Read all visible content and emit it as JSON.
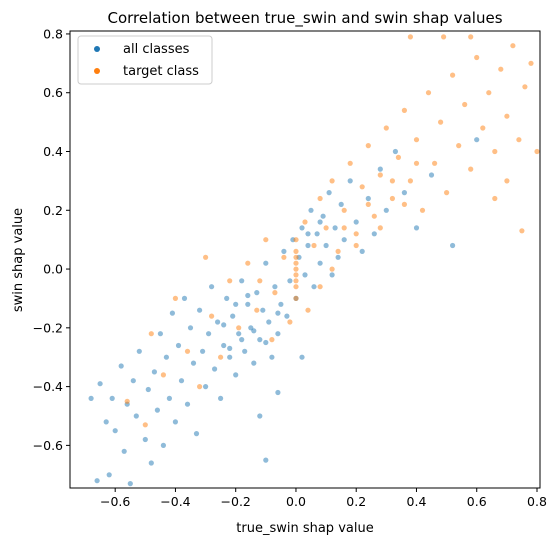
{
  "chart_data": {
    "type": "scatter",
    "title": "Correlation between true_swin and swin shap values",
    "xlabel": "true_swin shap value",
    "ylabel": "swin shap value",
    "xlim": [
      -0.75,
      0.81
    ],
    "ylim": [
      -0.745,
      0.81
    ],
    "x_ticks": [
      -0.6,
      -0.4,
      -0.2,
      0.0,
      0.2,
      0.4,
      0.6,
      0.8
    ],
    "x_tick_labels": [
      "−0.6",
      "−0.4",
      "−0.2",
      "0.0",
      "0.2",
      "0.4",
      "0.6",
      "0.8"
    ],
    "y_ticks": [
      -0.6,
      -0.4,
      -0.2,
      0.0,
      0.2,
      0.4,
      0.6,
      0.8
    ],
    "y_tick_labels": [
      "−0.6",
      "−0.4",
      "−0.2",
      "0.0",
      "0.2",
      "0.4",
      "0.6",
      "0.8"
    ],
    "grid": false,
    "legend_position": "upper-left",
    "series": [
      {
        "name": "all classes",
        "color": "#1f77b4",
        "points": [
          [
            -0.68,
            -0.44
          ],
          [
            -0.66,
            -0.72
          ],
          [
            -0.65,
            -0.39
          ],
          [
            -0.63,
            -0.52
          ],
          [
            -0.62,
            -0.7
          ],
          [
            -0.61,
            -0.44
          ],
          [
            -0.6,
            -0.55
          ],
          [
            -0.58,
            -0.33
          ],
          [
            -0.57,
            -0.62
          ],
          [
            -0.56,
            -0.46
          ],
          [
            -0.55,
            -0.73
          ],
          [
            -0.54,
            -0.38
          ],
          [
            -0.53,
            -0.5
          ],
          [
            -0.52,
            -0.28
          ],
          [
            -0.5,
            -0.58
          ],
          [
            -0.49,
            -0.41
          ],
          [
            -0.48,
            -0.66
          ],
          [
            -0.47,
            -0.35
          ],
          [
            -0.46,
            -0.48
          ],
          [
            -0.45,
            -0.22
          ],
          [
            -0.44,
            -0.6
          ],
          [
            -0.43,
            -0.3
          ],
          [
            -0.42,
            -0.44
          ],
          [
            -0.41,
            -0.15
          ],
          [
            -0.4,
            -0.52
          ],
          [
            -0.39,
            -0.26
          ],
          [
            -0.38,
            -0.38
          ],
          [
            -0.37,
            -0.1
          ],
          [
            -0.36,
            -0.46
          ],
          [
            -0.35,
            -0.2
          ],
          [
            -0.34,
            -0.32
          ],
          [
            -0.33,
            -0.56
          ],
          [
            -0.32,
            -0.14
          ],
          [
            -0.31,
            -0.28
          ],
          [
            -0.3,
            -0.4
          ],
          [
            -0.29,
            -0.22
          ],
          [
            -0.28,
            -0.06
          ],
          [
            -0.27,
            -0.34
          ],
          [
            -0.26,
            -0.18
          ],
          [
            -0.25,
            -0.44
          ],
          [
            -0.24,
            -0.26
          ],
          [
            -0.23,
            -0.1
          ],
          [
            -0.22,
            -0.3
          ],
          [
            -0.21,
            -0.16
          ],
          [
            -0.2,
            -0.36
          ],
          [
            -0.19,
            -0.22
          ],
          [
            -0.18,
            -0.04
          ],
          [
            -0.17,
            -0.28
          ],
          [
            -0.16,
            -0.12
          ],
          [
            -0.15,
            -0.2
          ],
          [
            -0.14,
            -0.32
          ],
          [
            -0.13,
            -0.08
          ],
          [
            -0.12,
            -0.24
          ],
          [
            -0.11,
            -0.14
          ],
          [
            -0.1,
            0.02
          ],
          [
            -0.09,
            -0.18
          ],
          [
            -0.08,
            -0.3
          ],
          [
            -0.07,
            -0.06
          ],
          [
            -0.06,
            -0.22
          ],
          [
            -0.05,
            -0.12
          ],
          [
            -0.04,
            0.06
          ],
          [
            -0.03,
            -0.16
          ],
          [
            -0.02,
            -0.04
          ],
          [
            -0.01,
            0.1
          ],
          [
            0.0,
            -0.1
          ],
          [
            0.01,
            0.04
          ],
          [
            0.02,
            0.14
          ],
          [
            0.03,
            -0.02
          ],
          [
            0.04,
            0.08
          ],
          [
            0.05,
            0.2
          ],
          [
            0.06,
            -0.06
          ],
          [
            0.07,
            0.12
          ],
          [
            0.08,
            0.02
          ],
          [
            0.09,
            0.18
          ],
          [
            0.1,
            0.08
          ],
          [
            0.11,
            0.26
          ],
          [
            0.12,
            -0.02
          ],
          [
            0.13,
            0.14
          ],
          [
            0.14,
            0.04
          ],
          [
            0.15,
            0.22
          ],
          [
            0.16,
            0.1
          ],
          [
            0.18,
            0.3
          ],
          [
            0.2,
            0.16
          ],
          [
            0.22,
            0.06
          ],
          [
            0.24,
            0.24
          ],
          [
            0.26,
            0.12
          ],
          [
            0.28,
            0.34
          ],
          [
            0.3,
            0.2
          ],
          [
            0.33,
            0.4
          ],
          [
            0.36,
            0.26
          ],
          [
            0.4,
            0.14
          ],
          [
            0.45,
            0.32
          ],
          [
            0.52,
            0.08
          ],
          [
            0.6,
            0.44
          ],
          [
            -0.22,
            -0.27
          ],
          [
            -0.18,
            -0.24
          ],
          [
            -0.14,
            -0.21
          ],
          [
            -0.1,
            -0.25
          ],
          [
            -0.06,
            -0.15
          ],
          [
            -0.24,
            -0.19
          ],
          [
            -0.2,
            -0.12
          ],
          [
            -0.16,
            -0.09
          ],
          [
            0.04,
            0.12
          ],
          [
            0.08,
            0.16
          ],
          [
            -0.12,
            -0.5
          ],
          [
            -0.06,
            -0.42
          ],
          [
            0.02,
            -0.3
          ],
          [
            -0.1,
            -0.65
          ]
        ]
      },
      {
        "name": "target class",
        "color": "#ff7f0e",
        "points": [
          [
            -0.56,
            -0.45
          ],
          [
            -0.5,
            -0.53
          ],
          [
            -0.48,
            -0.22
          ],
          [
            -0.44,
            -0.36
          ],
          [
            -0.4,
            -0.1
          ],
          [
            -0.36,
            -0.28
          ],
          [
            -0.32,
            -0.4
          ],
          [
            -0.3,
            0.04
          ],
          [
            -0.28,
            -0.16
          ],
          [
            -0.25,
            -0.3
          ],
          [
            -0.22,
            -0.04
          ],
          [
            -0.19,
            -0.2
          ],
          [
            -0.16,
            0.02
          ],
          [
            -0.13,
            -0.14
          ],
          [
            -0.1,
            0.1
          ],
          [
            -0.07,
            -0.08
          ],
          [
            -0.04,
            0.04
          ],
          [
            -0.02,
            -0.18
          ],
          [
            0.0,
            0.06
          ],
          [
            0.0,
            -0.02
          ],
          [
            0.0,
            0.1
          ],
          [
            0.0,
            -0.06
          ],
          [
            0.0,
            0.02
          ],
          [
            0.0,
            -0.1
          ],
          [
            0.0,
            0.0
          ],
          [
            0.0,
            0.04
          ],
          [
            0.0,
            -0.04
          ],
          [
            0.03,
            0.16
          ],
          [
            0.06,
            0.08
          ],
          [
            0.08,
            0.24
          ],
          [
            0.1,
            0.14
          ],
          [
            0.12,
            0.3
          ],
          [
            0.14,
            0.06
          ],
          [
            0.16,
            0.2
          ],
          [
            0.18,
            0.36
          ],
          [
            0.2,
            0.12
          ],
          [
            0.22,
            0.28
          ],
          [
            0.24,
            0.42
          ],
          [
            0.26,
            0.18
          ],
          [
            0.28,
            0.32
          ],
          [
            0.3,
            0.48
          ],
          [
            0.32,
            0.24
          ],
          [
            0.34,
            0.38
          ],
          [
            0.36,
            0.54
          ],
          [
            0.38,
            0.3
          ],
          [
            0.4,
            0.44
          ],
          [
            0.42,
            0.2
          ],
          [
            0.44,
            0.6
          ],
          [
            0.46,
            0.36
          ],
          [
            0.48,
            0.5
          ],
          [
            0.5,
            0.26
          ],
          [
            0.52,
            0.66
          ],
          [
            0.54,
            0.42
          ],
          [
            0.56,
            0.56
          ],
          [
            0.58,
            0.34
          ],
          [
            0.6,
            0.72
          ],
          [
            0.62,
            0.48
          ],
          [
            0.64,
            0.6
          ],
          [
            0.66,
            0.4
          ],
          [
            0.68,
            0.68
          ],
          [
            0.7,
            0.52
          ],
          [
            0.72,
            0.76
          ],
          [
            0.74,
            0.44
          ],
          [
            0.76,
            0.62
          ],
          [
            0.78,
            0.7
          ],
          [
            0.8,
            0.4
          ],
          [
            0.75,
            0.13
          ],
          [
            0.7,
            0.3
          ],
          [
            0.66,
            0.24
          ],
          [
            0.38,
            0.79
          ],
          [
            0.58,
            0.79
          ],
          [
            0.49,
            0.79
          ],
          [
            0.12,
            0.0
          ],
          [
            0.16,
            0.14
          ],
          [
            0.2,
            0.08
          ],
          [
            0.24,
            0.22
          ],
          [
            0.28,
            0.14
          ],
          [
            0.32,
            0.3
          ],
          [
            0.36,
            0.22
          ],
          [
            0.4,
            0.36
          ],
          [
            -0.08,
            -0.24
          ],
          [
            -0.12,
            -0.04
          ],
          [
            0.04,
            -0.14
          ],
          [
            0.08,
            -0.06
          ]
        ]
      }
    ]
  }
}
